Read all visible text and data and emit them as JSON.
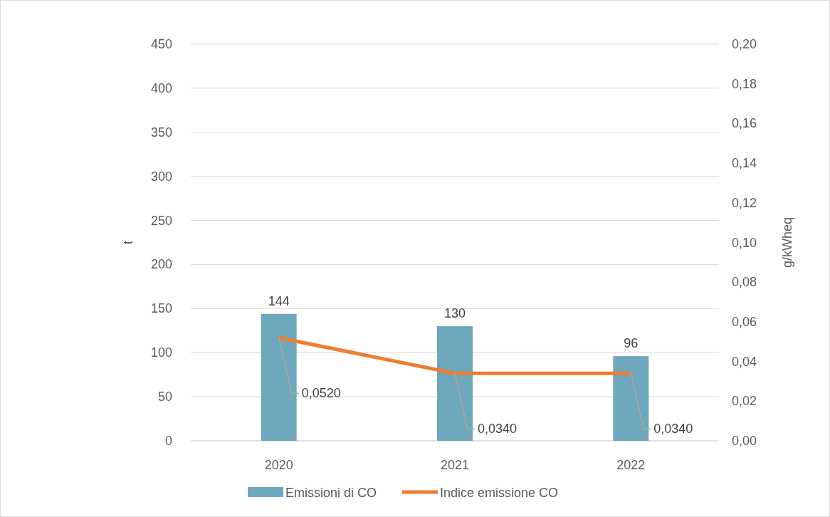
{
  "chart_data": {
    "type": "bar",
    "categories": [
      "2020",
      "2021",
      "2022"
    ],
    "series": [
      {
        "name": "Emissioni di CO",
        "color": "#6ea6bb",
        "values": [
          144,
          130,
          96
        ],
        "value_labels": [
          "144",
          "130",
          "96"
        ]
      },
      {
        "name": "Indice emissione CO",
        "type": "line",
        "axis": "y2",
        "color": "#ed7d31",
        "values": [
          0.052,
          0.034,
          0.034
        ],
        "value_labels": [
          "0,0520",
          "0,0340",
          "0,0340"
        ]
      }
    ],
    "ylabel": "t",
    "y2label": "g/kWheq",
    "ylim": [
      0,
      450
    ],
    "yticks": [
      0,
      50,
      100,
      150,
      200,
      250,
      300,
      350,
      400,
      450
    ],
    "y2lim": [
      0,
      0.2
    ],
    "y2ticks": [
      {
        "value": 0,
        "label": "0,00"
      },
      {
        "value": 0.02,
        "label": "0,02"
      },
      {
        "value": 0.04,
        "label": "0,04"
      },
      {
        "value": 0.06,
        "label": "0,06"
      },
      {
        "value": 0.08,
        "label": "0,08"
      },
      {
        "value": 0.1,
        "label": "0,10"
      },
      {
        "value": 0.12,
        "label": "0,12"
      },
      {
        "value": 0.14,
        "label": "0,14"
      },
      {
        "value": 0.16,
        "label": "0,16"
      },
      {
        "value": 0.18,
        "label": "0,18"
      },
      {
        "value": 0.2,
        "label": "0,20"
      }
    ],
    "grid": "y",
    "legend": "bottom",
    "marker": "none",
    "line_style": "solid"
  }
}
